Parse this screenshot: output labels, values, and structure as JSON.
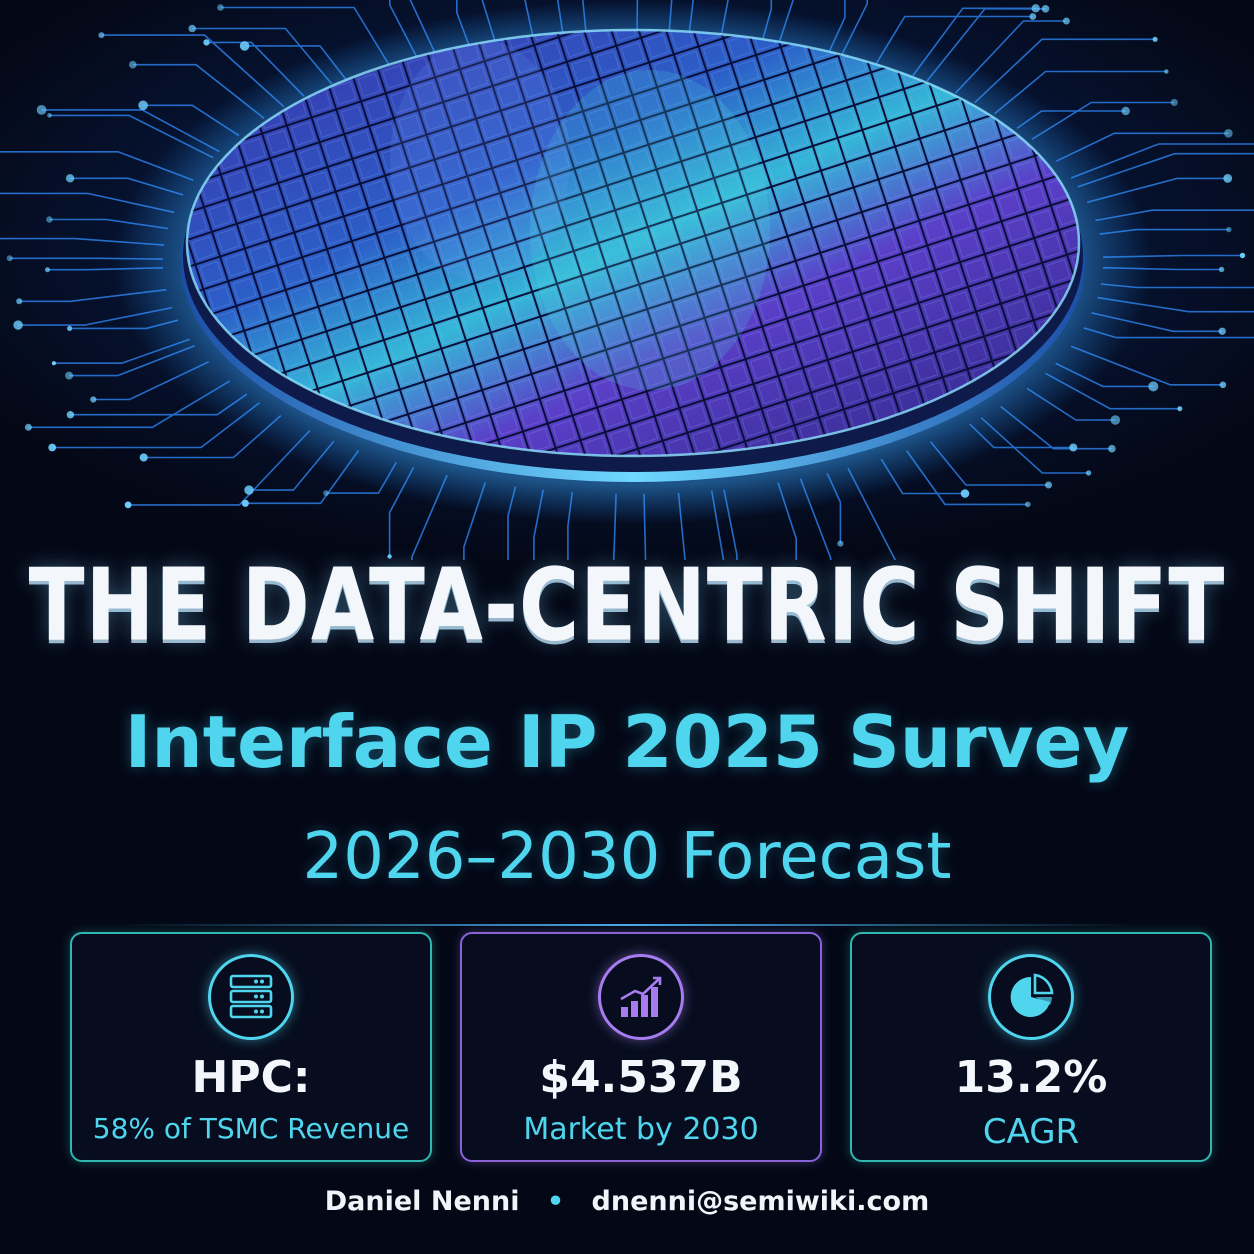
{
  "hero": {
    "image": "silicon-wafer-on-circuit-board",
    "accent_colors": [
      "#1e90ff",
      "#7b3fe4",
      "#2fd4e8"
    ]
  },
  "title": {
    "main": "THE DATA-CENTRIC SHIFT",
    "subtitle": "Interface IP 2025 Survey",
    "forecast": "2026–2030 Forecast"
  },
  "cards": [
    {
      "icon": "server-icon",
      "value": "HPC:",
      "label": "58% of TSMC Revenue",
      "border_color": "#2fb7b0"
    },
    {
      "icon": "growth-chart-icon",
      "value": "$4.537B",
      "label": "Market by 2030",
      "border_color": "#8a63d9"
    },
    {
      "icon": "pie-chart-icon",
      "value": "13.2%",
      "label": "CAGR",
      "border_color": "#2fb7b0"
    }
  ],
  "footer": {
    "author": "Daniel Nenni",
    "separator": "•",
    "email": "dnenni@semiwiki.com"
  }
}
